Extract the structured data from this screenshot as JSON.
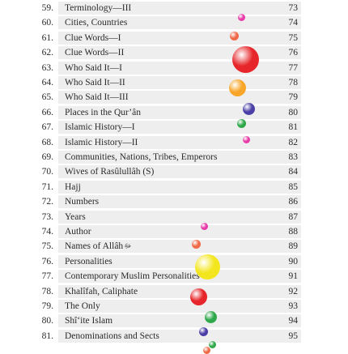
{
  "toc": {
    "entries": [
      {
        "num": "59.",
        "title": "Terminology—III",
        "page": "73"
      },
      {
        "num": "60.",
        "title": "Cities, Countries",
        "page": "74"
      },
      {
        "num": "61.",
        "title": "Clue Words—I",
        "page": "75"
      },
      {
        "num": "62.",
        "title": "Clue Words—II",
        "page": "76"
      },
      {
        "num": "63.",
        "title": "Who Said It—I",
        "page": "77"
      },
      {
        "num": "64.",
        "title": "Who Said It—II",
        "page": "78"
      },
      {
        "num": "65.",
        "title": "Who Said It—III",
        "page": "79"
      },
      {
        "num": "66.",
        "title": "Places in the Qur’ân",
        "page": "80"
      },
      {
        "num": "67.",
        "title": "Islamic History—I",
        "page": "81"
      },
      {
        "num": "68.",
        "title": "Islamic History—II",
        "page": "82"
      },
      {
        "num": "69.",
        "title": "Communities, Nations, Tribes, Emperors",
        "page": "83"
      },
      {
        "num": "70.",
        "title": "Wives of Rasûlullâh (S)",
        "page": "84"
      },
      {
        "num": "71.",
        "title": "Hajj",
        "page": "85"
      },
      {
        "num": "72.",
        "title": "Numbers",
        "page": "86"
      },
      {
        "num": "73.",
        "title": "Years",
        "page": "87"
      },
      {
        "num": "74.",
        "title": "Author",
        "page": "88"
      },
      {
        "num": "75.",
        "title": "Names of Allâh",
        "title_glyph": "ﷻ",
        "page": "89"
      },
      {
        "num": "76.",
        "title": "Personalities",
        "page": "90"
      },
      {
        "num": "77.",
        "title": "Contemporary Muslim Personalities",
        "page": "91"
      },
      {
        "num": "78.",
        "title": "Khalîfah, Caliphate",
        "page": "92"
      },
      {
        "num": "79.",
        "title": "The Only",
        "page": "93"
      },
      {
        "num": "80.",
        "title": "Shî‘ite Islam",
        "page": "94"
      },
      {
        "num": "81.",
        "title": "Denominations and Sects",
        "page": "95"
      }
    ]
  },
  "decorations": {
    "balls": [
      {
        "color": "#e83aa8"
      },
      {
        "color": "#f06a48"
      },
      {
        "color": "#e6262a"
      },
      {
        "color": "#f7a62a"
      },
      {
        "color": "#4a3fa6"
      },
      {
        "color": "#2fa84a"
      },
      {
        "color": "#e83aa8"
      },
      {
        "color": "#e83aa8"
      },
      {
        "color": "#f06a48"
      },
      {
        "color": "#f3e61e"
      },
      {
        "color": "#e6262a"
      },
      {
        "color": "#2fa84a"
      },
      {
        "color": "#4a3fa6"
      },
      {
        "color": "#2fa84a"
      },
      {
        "color": "#f06a48"
      }
    ]
  }
}
